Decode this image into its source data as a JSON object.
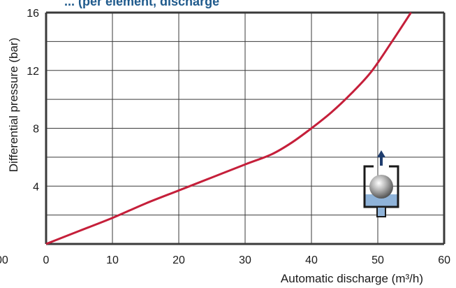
{
  "chart_data": {
    "type": "line",
    "title": "... (per element, discharge",
    "xlabel": "Automatic discharge (m³/h)",
    "ylabel": "Differential pressure (bar)",
    "xlim": [
      0,
      60
    ],
    "ylim": [
      0,
      16
    ],
    "x_ticks": [
      0,
      10,
      20,
      30,
      40,
      50,
      60
    ],
    "y_ticks": [
      4,
      8,
      12,
      16
    ],
    "x_tick_labels": [
      "0",
      "10",
      "20",
      "30",
      "40",
      "50",
      "60"
    ],
    "y_tick_labels": [
      "4",
      "8",
      "12",
      "16"
    ],
    "stray_left_label": "00",
    "grid": true,
    "series": [
      {
        "x": [
          0,
          5,
          10,
          15,
          20,
          25,
          30,
          34,
          37,
          40,
          43,
          46,
          49,
          52,
          55
        ],
        "y": [
          0,
          0.9,
          1.8,
          2.8,
          3.7,
          4.6,
          5.5,
          6.2,
          7.0,
          8.0,
          9.1,
          10.4,
          11.9,
          13.9,
          16.0
        ]
      }
    ],
    "colors": {
      "line": "#c51f3a",
      "grid": "#3a3a3a",
      "title": "#1f5a8c"
    }
  },
  "inset": {
    "icon": "float-valve-icon",
    "colors": {
      "water": "#8fb3d9",
      "arrow": "#1f3d6e",
      "body": "#1a1a1a"
    }
  }
}
